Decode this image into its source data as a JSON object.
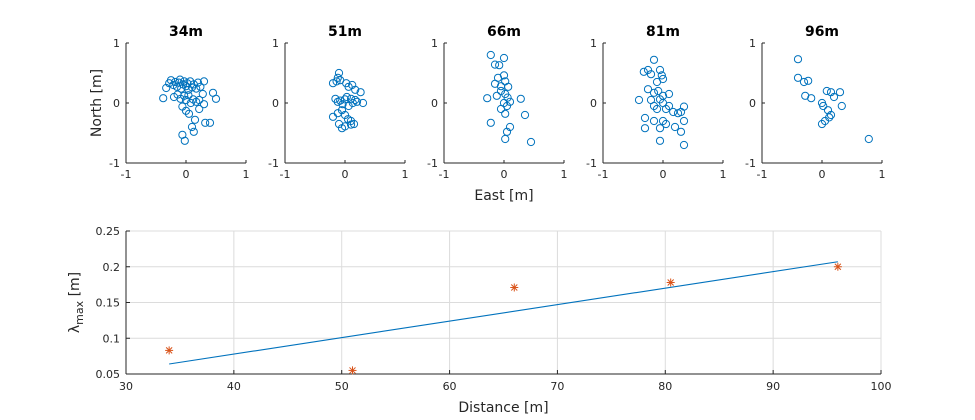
{
  "chart_data": [
    {
      "type": "scatter",
      "title": "34m",
      "xlim": [
        -1,
        1
      ],
      "ylim": [
        -1,
        1
      ],
      "xticks": [
        "-1",
        "0",
        "1"
      ],
      "yticks": [
        "-1",
        "0",
        "1"
      ],
      "ylabel": "North [m]",
      "marker": "circle",
      "color": "#0072bd",
      "points": [
        [
          -0.33,
          0.25
        ],
        [
          -0.28,
          0.33
        ],
        [
          -0.25,
          0.38
        ],
        [
          -0.21,
          0.3
        ],
        [
          -0.18,
          0.35
        ],
        [
          -0.15,
          0.27
        ],
        [
          -0.12,
          0.34
        ],
        [
          -0.1,
          0.39
        ],
        [
          -0.08,
          0.24
        ],
        [
          -0.05,
          0.31
        ],
        [
          -0.03,
          0.36
        ],
        [
          0.0,
          0.28
        ],
        [
          0.02,
          0.33
        ],
        [
          0.04,
          0.22
        ],
        [
          0.07,
          0.36
        ],
        [
          0.1,
          0.26
        ],
        [
          0.13,
          0.31
        ],
        [
          0.17,
          0.24
        ],
        [
          0.2,
          0.34
        ],
        [
          0.24,
          0.27
        ],
        [
          0.3,
          0.36
        ],
        [
          -0.38,
          0.08
        ],
        [
          -0.2,
          0.1
        ],
        [
          -0.14,
          0.14
        ],
        [
          -0.09,
          0.07
        ],
        [
          -0.03,
          0.12
        ],
        [
          0.0,
          0.05
        ],
        [
          0.04,
          0.13
        ],
        [
          0.08,
          0.0
        ],
        [
          0.12,
          0.06
        ],
        [
          0.17,
          0.02
        ],
        [
          0.22,
          0.05
        ],
        [
          0.28,
          0.15
        ],
        [
          0.5,
          0.07
        ],
        [
          0.45,
          0.17
        ],
        [
          -0.06,
          -0.06
        ],
        [
          0.0,
          -0.13
        ],
        [
          0.05,
          -0.18
        ],
        [
          0.22,
          -0.1
        ],
        [
          0.3,
          -0.02
        ],
        [
          0.15,
          -0.28
        ],
        [
          0.1,
          -0.4
        ],
        [
          0.32,
          -0.33
        ],
        [
          0.4,
          -0.33
        ],
        [
          0.13,
          -0.48
        ],
        [
          -0.06,
          -0.53
        ],
        [
          -0.02,
          -0.63
        ]
      ]
    },
    {
      "type": "scatter",
      "title": "51m",
      "xlim": [
        -1,
        1
      ],
      "ylim": [
        -1,
        1
      ],
      "xticks": [
        "-1",
        "0",
        "1"
      ],
      "yticks": [
        "-1",
        "0",
        "1"
      ],
      "marker": "circle",
      "color": "#0072bd",
      "points": [
        [
          -0.2,
          0.33
        ],
        [
          -0.14,
          0.36
        ],
        [
          -0.12,
          0.42
        ],
        [
          -0.1,
          0.5
        ],
        [
          -0.08,
          0.38
        ],
        [
          0.02,
          0.33
        ],
        [
          0.06,
          0.27
        ],
        [
          0.12,
          0.3
        ],
        [
          0.17,
          0.22
        ],
        [
          0.26,
          0.18
        ],
        [
          -0.16,
          0.07
        ],
        [
          -0.12,
          0.02
        ],
        [
          -0.08,
          0.04
        ],
        [
          -0.04,
          -0.02
        ],
        [
          0.0,
          0.06
        ],
        [
          0.03,
          0.1
        ],
        [
          0.06,
          -0.05
        ],
        [
          0.1,
          0.07
        ],
        [
          0.13,
          0.0
        ],
        [
          0.17,
          0.05
        ],
        [
          0.2,
          0.02
        ],
        [
          0.3,
          0.0
        ],
        [
          -0.2,
          -0.23
        ],
        [
          -0.12,
          -0.17
        ],
        [
          -0.05,
          -0.12
        ],
        [
          0.0,
          -0.2
        ],
        [
          0.05,
          -0.27
        ],
        [
          0.1,
          -0.3
        ],
        [
          0.15,
          -0.35
        ],
        [
          -0.1,
          -0.35
        ],
        [
          -0.05,
          -0.42
        ],
        [
          0.0,
          -0.39
        ],
        [
          0.1,
          -0.36
        ]
      ]
    },
    {
      "type": "scatter",
      "title": "66m",
      "xlim": [
        -1,
        1
      ],
      "ylim": [
        -1,
        1
      ],
      "xticks": [
        "-1",
        "0",
        "1"
      ],
      "yticks": [
        "-1",
        "0",
        "1"
      ],
      "xlabel": "East [m]",
      "marker": "circle",
      "color": "#0072bd",
      "points": [
        [
          -0.22,
          0.8
        ],
        [
          0.0,
          0.75
        ],
        [
          -0.15,
          0.64
        ],
        [
          -0.08,
          0.63
        ],
        [
          -0.1,
          0.42
        ],
        [
          0.0,
          0.46
        ],
        [
          -0.15,
          0.32
        ],
        [
          -0.05,
          0.28
        ],
        [
          0.02,
          0.36
        ],
        [
          0.07,
          0.27
        ],
        [
          -0.28,
          0.08
        ],
        [
          -0.12,
          0.12
        ],
        [
          -0.05,
          0.2
        ],
        [
          0.02,
          0.15
        ],
        [
          0.06,
          0.09
        ],
        [
          0.1,
          0.02
        ],
        [
          0.0,
          0.0
        ],
        [
          -0.05,
          -0.1
        ],
        [
          0.05,
          -0.05
        ],
        [
          0.28,
          0.07
        ],
        [
          0.02,
          -0.18
        ],
        [
          -0.22,
          -0.33
        ],
        [
          0.1,
          -0.4
        ],
        [
          0.05,
          -0.48
        ],
        [
          0.35,
          -0.2
        ],
        [
          0.02,
          -0.6
        ],
        [
          0.45,
          -0.65
        ]
      ]
    },
    {
      "type": "scatter",
      "title": "81m",
      "xlim": [
        -1,
        1
      ],
      "ylim": [
        -1,
        1
      ],
      "xticks": [
        "-1",
        "0",
        "1"
      ],
      "yticks": [
        "-1",
        "0",
        "1"
      ],
      "marker": "circle",
      "color": "#0072bd",
      "points": [
        [
          -0.15,
          0.72
        ],
        [
          -0.32,
          0.52
        ],
        [
          -0.25,
          0.55
        ],
        [
          -0.2,
          0.48
        ],
        [
          -0.05,
          0.55
        ],
        [
          -0.02,
          0.46
        ],
        [
          0.0,
          0.4
        ],
        [
          -0.1,
          0.35
        ],
        [
          -0.25,
          0.23
        ],
        [
          -0.15,
          0.17
        ],
        [
          -0.08,
          0.2
        ],
        [
          0.0,
          0.12
        ],
        [
          0.1,
          0.15
        ],
        [
          -0.2,
          0.05
        ],
        [
          -0.05,
          0.06
        ],
        [
          0.0,
          0.0
        ],
        [
          -0.4,
          0.05
        ],
        [
          -0.15,
          -0.05
        ],
        [
          -0.1,
          -0.1
        ],
        [
          0.05,
          -0.1
        ],
        [
          0.1,
          -0.05
        ],
        [
          0.17,
          -0.15
        ],
        [
          0.25,
          -0.17
        ],
        [
          0.3,
          -0.15
        ],
        [
          0.35,
          -0.06
        ],
        [
          -0.3,
          -0.25
        ],
        [
          -0.15,
          -0.3
        ],
        [
          0.0,
          -0.3
        ],
        [
          0.05,
          -0.35
        ],
        [
          -0.05,
          -0.42
        ],
        [
          -0.3,
          -0.42
        ],
        [
          0.2,
          -0.4
        ],
        [
          0.35,
          -0.3
        ],
        [
          0.3,
          -0.48
        ],
        [
          -0.05,
          -0.63
        ],
        [
          0.35,
          -0.7
        ]
      ]
    },
    {
      "type": "scatter",
      "title": "96m",
      "xlim": [
        -1,
        1
      ],
      "ylim": [
        -1,
        1
      ],
      "xticks": [
        "-1",
        "0",
        "1"
      ],
      "yticks": [
        "-1",
        "0",
        "1"
      ],
      "marker": "circle",
      "color": "#0072bd",
      "points": [
        [
          -0.4,
          0.73
        ],
        [
          -0.4,
          0.42
        ],
        [
          -0.3,
          0.35
        ],
        [
          -0.23,
          0.37
        ],
        [
          -0.28,
          0.12
        ],
        [
          -0.18,
          0.08
        ],
        [
          0.0,
          0.0
        ],
        [
          0.02,
          -0.05
        ],
        [
          0.08,
          0.2
        ],
        [
          0.15,
          0.18
        ],
        [
          0.3,
          0.18
        ],
        [
          0.2,
          0.1
        ],
        [
          0.33,
          -0.05
        ],
        [
          0.1,
          -0.12
        ],
        [
          0.15,
          -0.2
        ],
        [
          0.12,
          -0.24
        ],
        [
          0.05,
          -0.3
        ],
        [
          0.0,
          -0.35
        ],
        [
          0.78,
          -0.6
        ]
      ]
    },
    {
      "type": "line",
      "xlabel": "Distance [m]",
      "ylabel": "λmax [m]",
      "xlim": [
        30,
        100
      ],
      "ylim": [
        0.05,
        0.25
      ],
      "xticks": [
        "30",
        "40",
        "50",
        "60",
        "70",
        "80",
        "90",
        "100"
      ],
      "yticks": [
        "0.05",
        "0.1",
        "0.15",
        "0.2",
        "0.25"
      ],
      "grid": true,
      "series": [
        {
          "kind": "line",
          "color": "#0072bd",
          "x": [
            34,
            96
          ],
          "y": [
            0.064,
            0.207
          ]
        },
        {
          "kind": "scatter",
          "marker": "asterisk",
          "color": "#d95319",
          "x": [
            34,
            51,
            66,
            80.5,
            96
          ],
          "y": [
            0.083,
            0.055,
            0.171,
            0.178,
            0.2
          ]
        }
      ]
    }
  ]
}
